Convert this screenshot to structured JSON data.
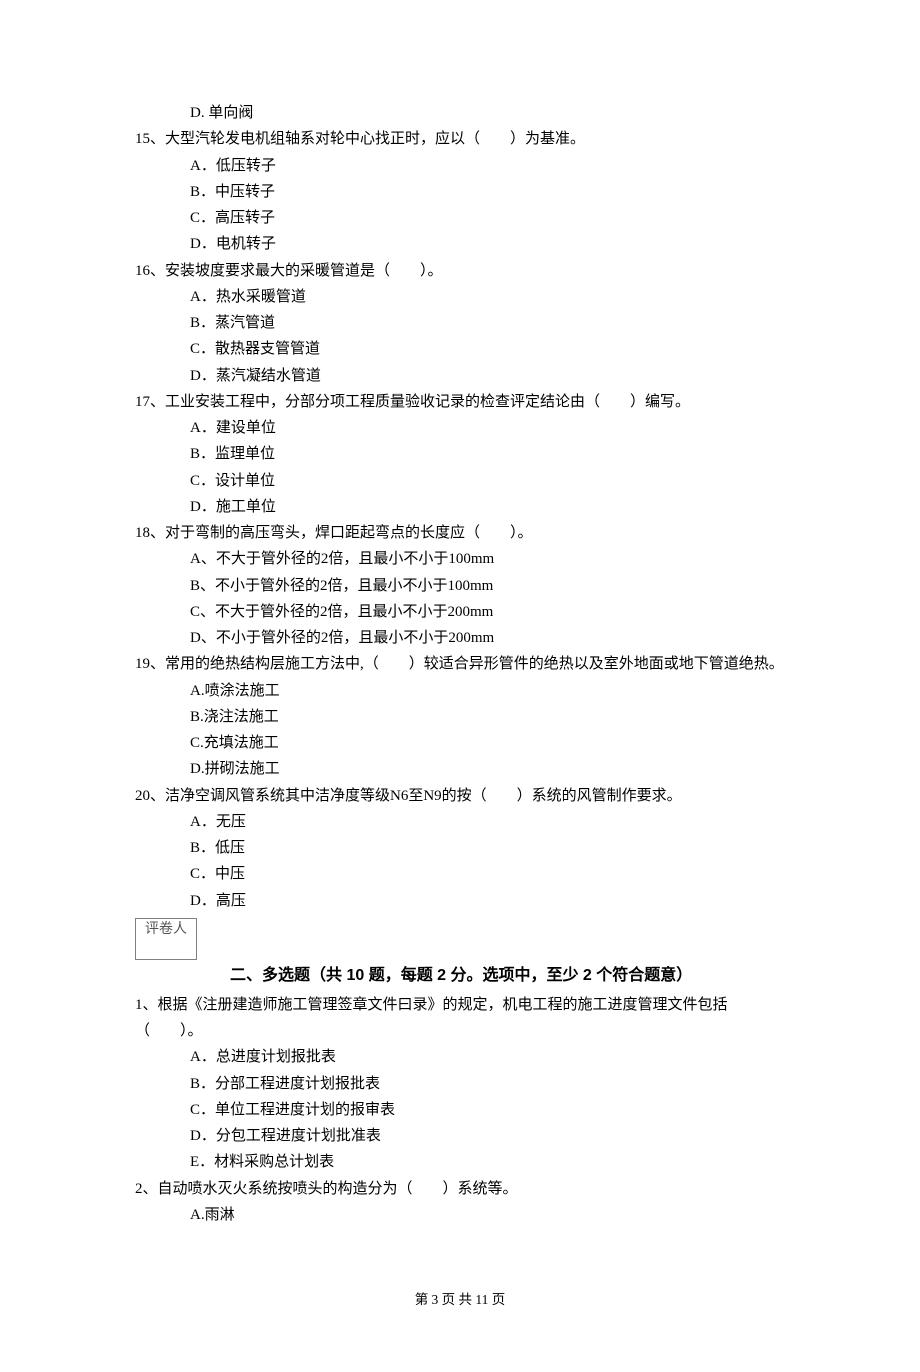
{
  "q14": {
    "options": {
      "D": "D. 单向阀"
    }
  },
  "q15": {
    "stem": "15、大型汽轮发电机组轴系对轮中心找正时，应以（　　）为基准。",
    "options": {
      "A": "A．低压转子",
      "B": "B．中压转子",
      "C": "C．高压转子",
      "D": "D．电机转子"
    }
  },
  "q16": {
    "stem": "16、安装坡度要求最大的采暖管道是（　　）。",
    "options": {
      "A": "A．热水采暖管道",
      "B": "B．蒸汽管道",
      "C": "C．散热器支管管道",
      "D": "D．蒸汽凝结水管道"
    }
  },
  "q17": {
    "stem": "17、工业安装工程中，分部分项工程质量验收记录的检查评定结论由（　　）编写。",
    "options": {
      "A": "A．建设单位",
      "B": "B．监理单位",
      "C": "C．设计单位",
      "D": "D．施工单位"
    }
  },
  "q18": {
    "stem": "18、对于弯制的高压弯头，焊口距起弯点的长度应（　　）。",
    "options": {
      "A": "A、不大于管外径的2倍，且最小不小于100mm",
      "B": "B、不小于管外径的2倍，且最小不小于100mm",
      "C": "C、不大于管外径的2倍，且最小不小于200mm",
      "D": "D、不小于管外径的2倍，且最小不小于200mm"
    }
  },
  "q19": {
    "stem": "19、常用的绝热结构层施工方法中,（　　）较适合异形管件的绝热以及室外地面或地下管道绝热。",
    "options": {
      "A": "A.喷涂法施工",
      "B": "B.浇注法施工",
      "C": "C.充填法施工",
      "D": "D.拼砌法施工"
    }
  },
  "q20": {
    "stem": "20、洁净空调风管系统其中洁净度等级N6至N9的按（　　）系统的风管制作要求。",
    "options": {
      "A": "A．无压",
      "B": "B．低压",
      "C": "C．中压",
      "D": "D．高压"
    }
  },
  "grader_label": "评卷人",
  "section2_title": "二、多选题（共 10 题，每题 2 分。选项中，至少 2 个符合题意）",
  "mq1": {
    "stem": "1、根据《注册建造师施工管理签章文件曰录》的规定，机电工程的施工进度管理文件包括（　　）。",
    "options": {
      "A": "A．总进度计划报批表",
      "B": "B．分部工程进度计划报批表",
      "C": "C．单位工程进度计划的报审表",
      "D": "D．分包工程进度计划批准表",
      "E": "E．材料采购总计划表"
    }
  },
  "mq2": {
    "stem": "2、自动喷水灭火系统按喷头的构造分为（　　）系统等。",
    "options": {
      "A": "A.雨淋"
    }
  },
  "footer": "第 3 页 共 11 页"
}
